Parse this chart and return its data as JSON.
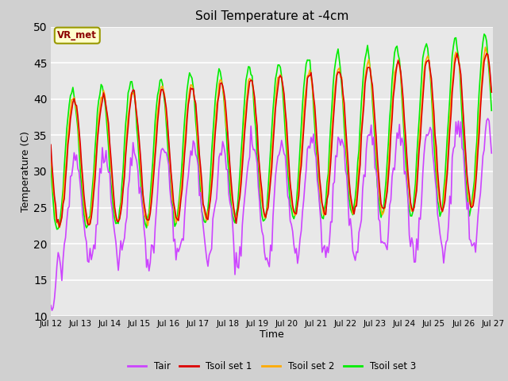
{
  "title": "Soil Temperature at -4cm",
  "xlabel": "Time",
  "ylabel": "Temperature (C)",
  "ylim": [
    10,
    50
  ],
  "xlim": [
    0,
    360
  ],
  "legend_label": "VR_met",
  "legend_box_color": "#ffffcc",
  "legend_box_edge": "#999900",
  "line_colors": {
    "Tair": "#cc44ff",
    "Tsoil set 1": "#dd0000",
    "Tsoil set 2": "#ffaa00",
    "Tsoil set 3": "#00ee00"
  },
  "line_widths": {
    "Tair": 1.2,
    "Tsoil set 1": 1.2,
    "Tsoil set 2": 1.2,
    "Tsoil set 3": 1.2
  },
  "x_tick_labels": [
    "Jul 12",
    "Jul 13",
    "Jul 14",
    "Jul 15",
    "Jul 16",
    "Jul 17",
    "Jul 18",
    "Jul 19",
    "Jul 20",
    "Jul 21",
    "Jul 22",
    "Jul 23",
    "Jul 24",
    "Jul 25",
    "Jul 26",
    "Jul 27"
  ],
  "x_tick_positions": [
    0,
    24,
    48,
    72,
    96,
    120,
    144,
    168,
    192,
    216,
    240,
    264,
    288,
    312,
    336,
    360
  ],
  "yticks": [
    10,
    15,
    20,
    25,
    30,
    35,
    40,
    45,
    50
  ]
}
